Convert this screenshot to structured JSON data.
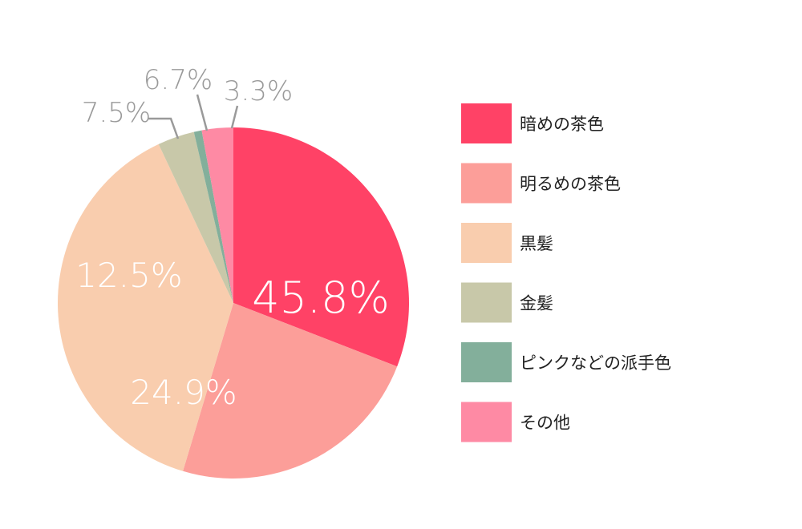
{
  "chart_data": {
    "type": "pie",
    "title": "",
    "legend_position": "right",
    "slices": [
      {
        "label": "暗めの茶色",
        "value": 45.8,
        "value_label": "45.8%",
        "color": "#FF4266"
      },
      {
        "label": "明るめの茶色",
        "value": 24.9,
        "value_label": "24.9%",
        "color": "#FC9E99"
      },
      {
        "label": "黒髪",
        "value": 12.5,
        "value_label": "12.5%",
        "color": "#F9CDAE"
      },
      {
        "label": "金髪",
        "value": 7.5,
        "value_label": "7.5%",
        "color": "#C8C8A9"
      },
      {
        "label": "ピンクなどの派手色",
        "value": 6.7,
        "value_label": "6.7%",
        "color": "#83AF9B"
      },
      {
        "label": "その他",
        "value": 3.3,
        "value_label": "3.3%",
        "color": "#FE8AA4"
      }
    ]
  }
}
